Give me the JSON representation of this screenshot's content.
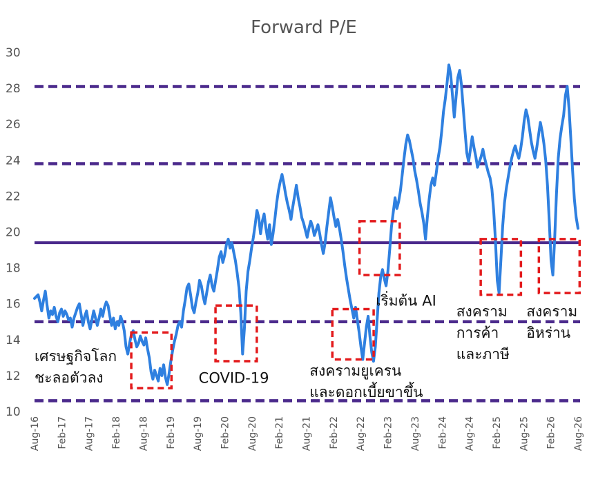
{
  "chart_data": {
    "type": "line",
    "title": "Forward P/E",
    "xlabel": "",
    "ylabel": "",
    "ylim": [
      10,
      30
    ],
    "yticks": [
      "10",
      "12",
      "14",
      "16",
      "18",
      "20",
      "22",
      "24",
      "26",
      "28",
      "30"
    ],
    "x_tick_labels": [
      "Aug-16",
      "Feb-17",
      "Aug-17",
      "Feb-18",
      "Aug-18",
      "Feb-19",
      "Aug-19",
      "Feb-20",
      "Aug-20",
      "Feb-21",
      "Aug-21",
      "Feb-22",
      "Aug-22",
      "Feb-23",
      "Aug-23",
      "Feb-24",
      "Aug-24",
      "Feb-25",
      "Aug-25",
      "Feb-26",
      "Aug-26"
    ],
    "grid": false,
    "legend": "none",
    "colors": {
      "series": "#2f80e0",
      "mean_line": "#4b2a8c",
      "band_lines": "#4b2a8c",
      "highlight_boxes": "#e31a1c"
    },
    "series": [
      {
        "values": [
          16.3,
          16.4,
          16.5,
          16.1,
          15.6,
          16.2,
          16.7,
          15.9,
          15.2,
          15.6,
          15.4,
          15.8,
          15.3,
          15.0,
          15.5,
          15.7,
          15.3,
          15.6,
          15.4,
          15.1,
          15.2,
          14.7,
          15.2,
          15.5,
          15.8,
          16.0,
          15.4,
          14.8,
          15.3,
          15.6,
          15.0,
          14.6,
          15.1,
          15.6,
          15.2,
          14.8,
          15.2,
          15.7,
          15.3,
          15.8,
          16.1,
          15.9,
          15.3,
          14.8,
          15.2,
          14.6,
          15.0,
          14.8,
          15.3,
          15.0,
          14.5,
          13.6,
          13.2,
          13.8,
          14.3,
          14.5,
          14.0,
          13.6,
          13.8,
          14.2,
          13.9,
          13.7,
          14.1,
          13.5,
          13.0,
          12.2,
          11.8,
          12.3,
          12.0,
          11.7,
          12.4,
          12.0,
          12.6,
          11.9,
          11.5,
          12.1,
          12.8,
          13.4,
          13.9,
          14.3,
          14.8,
          15.0,
          14.7,
          15.6,
          16.2,
          16.9,
          17.1,
          16.5,
          15.8,
          15.5,
          16.1,
          16.6,
          17.3,
          17.0,
          16.4,
          16.0,
          16.6,
          17.2,
          17.6,
          17.0,
          16.7,
          17.3,
          17.9,
          18.6,
          18.9,
          18.3,
          18.7,
          19.3,
          19.6,
          19.1,
          19.4,
          18.9,
          18.4,
          17.7,
          16.9,
          15.5,
          13.2,
          14.6,
          16.7,
          17.8,
          18.4,
          19.1,
          19.7,
          20.4,
          21.2,
          20.8,
          19.9,
          20.6,
          21.0,
          20.2,
          19.6,
          20.4,
          19.3,
          19.9,
          20.7,
          21.6,
          22.3,
          22.8,
          23.2,
          22.7,
          22.1,
          21.6,
          21.2,
          20.7,
          21.4,
          22.0,
          22.6,
          21.9,
          21.4,
          20.8,
          20.5,
          20.1,
          19.7,
          20.2,
          20.6,
          20.3,
          19.8,
          20.1,
          20.4,
          19.9,
          19.3,
          18.8,
          19.4,
          20.3,
          21.1,
          21.9,
          21.4,
          20.8,
          20.3,
          20.7,
          20.2,
          19.6,
          18.9,
          18.1,
          17.4,
          16.8,
          16.2,
          15.7,
          15.2,
          15.8,
          15.1,
          14.4,
          13.6,
          12.9,
          13.8,
          14.7,
          15.3,
          14.2,
          13.3,
          12.8,
          13.6,
          15.1,
          16.6,
          17.5,
          17.9,
          17.4,
          17.0,
          17.8,
          19.0,
          20.3,
          21.1,
          21.9,
          21.3,
          21.7,
          22.3,
          23.2,
          24.1,
          24.9,
          25.4,
          25.1,
          24.6,
          24.1,
          23.4,
          22.9,
          22.3,
          21.6,
          21.1,
          20.5,
          19.6,
          20.8,
          21.8,
          22.6,
          23.0,
          22.6,
          23.3,
          24.1,
          24.7,
          25.6,
          26.7,
          27.4,
          28.3,
          29.3,
          28.8,
          27.6,
          26.4,
          27.5,
          28.6,
          29.0,
          28.2,
          26.9,
          25.6,
          24.4,
          23.9,
          24.6,
          25.3,
          24.7,
          24.2,
          23.6,
          23.9,
          24.2,
          24.6,
          24.1,
          23.7,
          23.3,
          23.0,
          22.4,
          21.2,
          19.5,
          17.3,
          16.6,
          18.4,
          20.3,
          21.6,
          22.4,
          23.0,
          23.6,
          24.1,
          24.5,
          24.8,
          24.4,
          24.1,
          24.6,
          25.3,
          26.2,
          26.8,
          26.4,
          25.7,
          25.0,
          24.5,
          24.1,
          24.7,
          25.4,
          26.1,
          25.6,
          24.9,
          24.0,
          22.6,
          20.6,
          18.4,
          17.6,
          19.6,
          22.1,
          24.1,
          25.2,
          25.9,
          26.5,
          27.6,
          28.1,
          26.9,
          25.2,
          23.4,
          21.8,
          20.8,
          20.2
        ]
      }
    ],
    "reference_lines": [
      {
        "style": "solid",
        "value": 19.4
      },
      {
        "style": "dashed",
        "value": 28.1
      },
      {
        "style": "dashed",
        "value": 23.8
      },
      {
        "style": "dashed",
        "value": 15.0
      },
      {
        "style": "dashed",
        "value": 10.6
      }
    ],
    "highlight_boxes": [
      {
        "x0": 0.178,
        "x1": 0.252,
        "y0": 11.3,
        "y1": 14.4
      },
      {
        "x0": 0.333,
        "x1": 0.409,
        "y0": 12.8,
        "y1": 15.9
      },
      {
        "x0": 0.548,
        "x1": 0.624,
        "y0": 12.9,
        "y1": 15.7
      },
      {
        "x0": 0.598,
        "x1": 0.672,
        "y0": 17.6,
        "y1": 20.6
      },
      {
        "x0": 0.821,
        "x1": 0.895,
        "y0": 16.5,
        "y1": 19.6
      },
      {
        "x0": 0.928,
        "x1": 1.003,
        "y0": 16.6,
        "y1": 19.6
      }
    ],
    "annotations": [
      {
        "lines": [
          "เศรษฐกิจโลก",
          "ชะลอตัวลง"
        ],
        "x": 0.0,
        "y": 12.8
      },
      {
        "lines": [
          "COVID-19"
        ],
        "x": 0.302,
        "y": 11.6
      },
      {
        "lines": [
          "สงครามยูเครน",
          "และดอกเบี้ยขาขึ้น"
        ],
        "x": 0.506,
        "y": 12.0
      },
      {
        "lines": [
          "เริ่มต้น AI"
        ],
        "x": 0.628,
        "y": 15.9
      },
      {
        "lines": [
          "สงคราม",
          "การค้า",
          "และภาษี"
        ],
        "x": 0.776,
        "y": 15.3
      },
      {
        "lines": [
          "สงคราม",
          "อิหร่าน"
        ],
        "x": 0.905,
        "y": 15.3
      }
    ]
  }
}
